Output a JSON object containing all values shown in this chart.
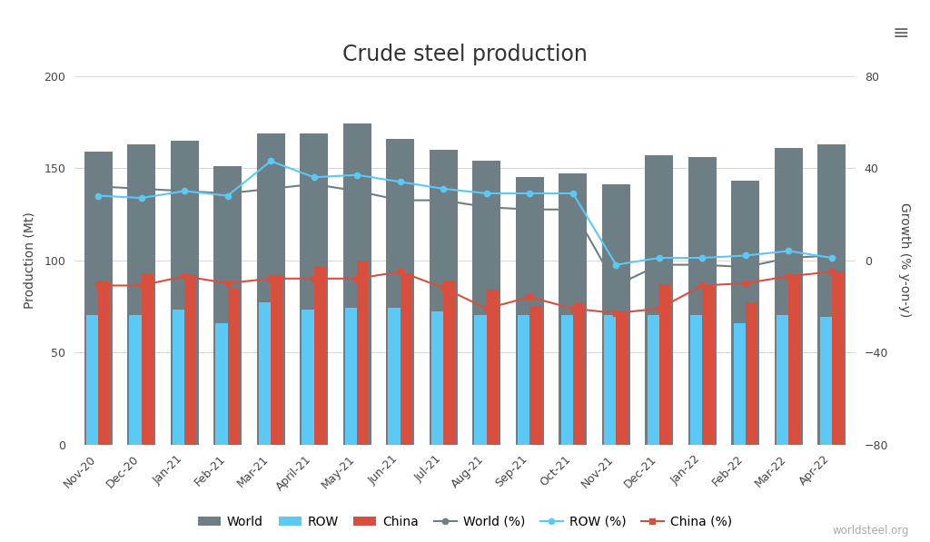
{
  "title": "Crude steel production",
  "ylabel_left": "Production (Mt)",
  "ylabel_right": "Growth (% y-on-y)",
  "categories": [
    "Nov-20",
    "Dec-20",
    "Jan-21",
    "Feb-21",
    "Mar-21",
    "April-21",
    "May-21",
    "Jun-21",
    "Jul-21",
    "Aug-21",
    "Sep-21",
    "Oct-21",
    "Nov-21",
    "Dec-21",
    "Jan-22",
    "Feb-22",
    "Mar-22",
    "Apr-22"
  ],
  "world": [
    159,
    163,
    165,
    151,
    169,
    169,
    174,
    166,
    160,
    154,
    145,
    147,
    141,
    157,
    156,
    143,
    161,
    163
  ],
  "row": [
    70,
    70,
    73,
    66,
    77,
    73,
    74,
    74,
    72,
    70,
    70,
    70,
    70,
    70,
    70,
    66,
    70,
    69
  ],
  "china": [
    89,
    93,
    92,
    85,
    92,
    97,
    100,
    93,
    89,
    84,
    75,
    77,
    71,
    87,
    86,
    77,
    92,
    94
  ],
  "world_pct": [
    32,
    31,
    30,
    29,
    31,
    33,
    30,
    26,
    26,
    23,
    22,
    22,
    -11,
    -2,
    -2,
    -3,
    1,
    2
  ],
  "row_pct": [
    28,
    27,
    30,
    28,
    43,
    36,
    37,
    34,
    31,
    29,
    29,
    29,
    -2,
    1,
    1,
    2,
    4,
    1
  ],
  "china_pct": [
    -11,
    -11,
    -7,
    -10,
    -8,
    -8,
    -8,
    -5,
    -12,
    -21,
    -16,
    -21,
    -23,
    -21,
    -11,
    -10,
    -7,
    -5
  ],
  "ylim_left": [
    0,
    200
  ],
  "ylim_right": [
    -80,
    80
  ],
  "yticks_left": [
    0,
    50,
    100,
    150,
    200
  ],
  "yticks_right": [
    -80,
    -40,
    0,
    40,
    80
  ],
  "bar_world_color": "#6d7f85",
  "bar_row_color": "#5bc8f5",
  "bar_china_color": "#d94f3d",
  "line_world_color": "#6d7f85",
  "line_row_color": "#5bc8f5",
  "line_china_color": "#d94f3d",
  "bg_color": "#ffffff",
  "grid_color": "#d0d0d0",
  "title_fontsize": 17,
  "axis_label_fontsize": 10,
  "tick_fontsize": 9,
  "legend_fontsize": 10,
  "watermark": "worldsteel.org"
}
